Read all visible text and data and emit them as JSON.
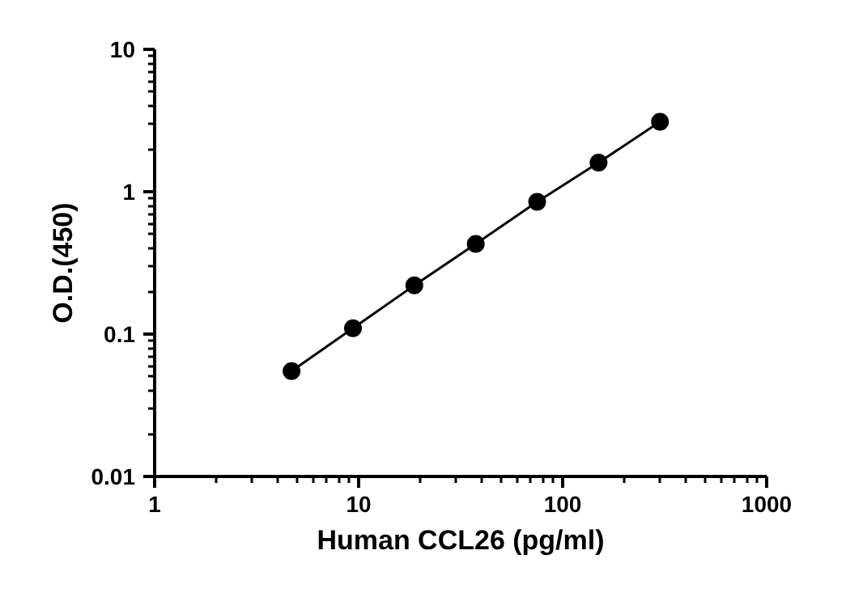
{
  "chart_data": {
    "type": "line",
    "xlabel": "Human CCL26 (pg/ml)",
    "ylabel": "O.D.(450)",
    "log": "xy",
    "xlim": [
      1,
      1000
    ],
    "xticks": [
      1,
      10,
      100,
      1000
    ],
    "ylim": [
      0.01,
      10
    ],
    "yticks": [
      0.01,
      0.1,
      1,
      10
    ],
    "grid": false,
    "marker": "circle",
    "line_style": "solid",
    "series": [
      {
        "color": "#000000",
        "x": [
          4.69,
          9.38,
          18.75,
          37.5,
          75,
          150,
          300
        ],
        "values": [
          0.055,
          0.11,
          0.22,
          0.43,
          0.85,
          1.6,
          3.1
        ]
      }
    ]
  }
}
